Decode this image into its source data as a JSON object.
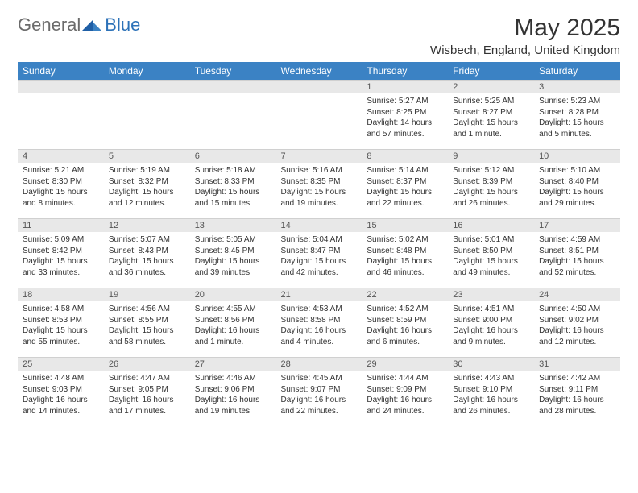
{
  "logo": {
    "general": "General",
    "blue": "Blue"
  },
  "header": {
    "month_title": "May 2025",
    "location": "Wisbech, England, United Kingdom"
  },
  "colors": {
    "header_bg": "#3b82c4",
    "header_text": "#ffffff",
    "daynum_bg": "#e8e8e8",
    "body_text": "#333333"
  },
  "weekdays": [
    "Sunday",
    "Monday",
    "Tuesday",
    "Wednesday",
    "Thursday",
    "Friday",
    "Saturday"
  ],
  "weeks": [
    [
      null,
      null,
      null,
      null,
      {
        "n": "1",
        "sunrise": "Sunrise: 5:27 AM",
        "sunset": "Sunset: 8:25 PM",
        "daylight": "Daylight: 14 hours and 57 minutes."
      },
      {
        "n": "2",
        "sunrise": "Sunrise: 5:25 AM",
        "sunset": "Sunset: 8:27 PM",
        "daylight": "Daylight: 15 hours and 1 minute."
      },
      {
        "n": "3",
        "sunrise": "Sunrise: 5:23 AM",
        "sunset": "Sunset: 8:28 PM",
        "daylight": "Daylight: 15 hours and 5 minutes."
      }
    ],
    [
      {
        "n": "4",
        "sunrise": "Sunrise: 5:21 AM",
        "sunset": "Sunset: 8:30 PM",
        "daylight": "Daylight: 15 hours and 8 minutes."
      },
      {
        "n": "5",
        "sunrise": "Sunrise: 5:19 AM",
        "sunset": "Sunset: 8:32 PM",
        "daylight": "Daylight: 15 hours and 12 minutes."
      },
      {
        "n": "6",
        "sunrise": "Sunrise: 5:18 AM",
        "sunset": "Sunset: 8:33 PM",
        "daylight": "Daylight: 15 hours and 15 minutes."
      },
      {
        "n": "7",
        "sunrise": "Sunrise: 5:16 AM",
        "sunset": "Sunset: 8:35 PM",
        "daylight": "Daylight: 15 hours and 19 minutes."
      },
      {
        "n": "8",
        "sunrise": "Sunrise: 5:14 AM",
        "sunset": "Sunset: 8:37 PM",
        "daylight": "Daylight: 15 hours and 22 minutes."
      },
      {
        "n": "9",
        "sunrise": "Sunrise: 5:12 AM",
        "sunset": "Sunset: 8:39 PM",
        "daylight": "Daylight: 15 hours and 26 minutes."
      },
      {
        "n": "10",
        "sunrise": "Sunrise: 5:10 AM",
        "sunset": "Sunset: 8:40 PM",
        "daylight": "Daylight: 15 hours and 29 minutes."
      }
    ],
    [
      {
        "n": "11",
        "sunrise": "Sunrise: 5:09 AM",
        "sunset": "Sunset: 8:42 PM",
        "daylight": "Daylight: 15 hours and 33 minutes."
      },
      {
        "n": "12",
        "sunrise": "Sunrise: 5:07 AM",
        "sunset": "Sunset: 8:43 PM",
        "daylight": "Daylight: 15 hours and 36 minutes."
      },
      {
        "n": "13",
        "sunrise": "Sunrise: 5:05 AM",
        "sunset": "Sunset: 8:45 PM",
        "daylight": "Daylight: 15 hours and 39 minutes."
      },
      {
        "n": "14",
        "sunrise": "Sunrise: 5:04 AM",
        "sunset": "Sunset: 8:47 PM",
        "daylight": "Daylight: 15 hours and 42 minutes."
      },
      {
        "n": "15",
        "sunrise": "Sunrise: 5:02 AM",
        "sunset": "Sunset: 8:48 PM",
        "daylight": "Daylight: 15 hours and 46 minutes."
      },
      {
        "n": "16",
        "sunrise": "Sunrise: 5:01 AM",
        "sunset": "Sunset: 8:50 PM",
        "daylight": "Daylight: 15 hours and 49 minutes."
      },
      {
        "n": "17",
        "sunrise": "Sunrise: 4:59 AM",
        "sunset": "Sunset: 8:51 PM",
        "daylight": "Daylight: 15 hours and 52 minutes."
      }
    ],
    [
      {
        "n": "18",
        "sunrise": "Sunrise: 4:58 AM",
        "sunset": "Sunset: 8:53 PM",
        "daylight": "Daylight: 15 hours and 55 minutes."
      },
      {
        "n": "19",
        "sunrise": "Sunrise: 4:56 AM",
        "sunset": "Sunset: 8:55 PM",
        "daylight": "Daylight: 15 hours and 58 minutes."
      },
      {
        "n": "20",
        "sunrise": "Sunrise: 4:55 AM",
        "sunset": "Sunset: 8:56 PM",
        "daylight": "Daylight: 16 hours and 1 minute."
      },
      {
        "n": "21",
        "sunrise": "Sunrise: 4:53 AM",
        "sunset": "Sunset: 8:58 PM",
        "daylight": "Daylight: 16 hours and 4 minutes."
      },
      {
        "n": "22",
        "sunrise": "Sunrise: 4:52 AM",
        "sunset": "Sunset: 8:59 PM",
        "daylight": "Daylight: 16 hours and 6 minutes."
      },
      {
        "n": "23",
        "sunrise": "Sunrise: 4:51 AM",
        "sunset": "Sunset: 9:00 PM",
        "daylight": "Daylight: 16 hours and 9 minutes."
      },
      {
        "n": "24",
        "sunrise": "Sunrise: 4:50 AM",
        "sunset": "Sunset: 9:02 PM",
        "daylight": "Daylight: 16 hours and 12 minutes."
      }
    ],
    [
      {
        "n": "25",
        "sunrise": "Sunrise: 4:48 AM",
        "sunset": "Sunset: 9:03 PM",
        "daylight": "Daylight: 16 hours and 14 minutes."
      },
      {
        "n": "26",
        "sunrise": "Sunrise: 4:47 AM",
        "sunset": "Sunset: 9:05 PM",
        "daylight": "Daylight: 16 hours and 17 minutes."
      },
      {
        "n": "27",
        "sunrise": "Sunrise: 4:46 AM",
        "sunset": "Sunset: 9:06 PM",
        "daylight": "Daylight: 16 hours and 19 minutes."
      },
      {
        "n": "28",
        "sunrise": "Sunrise: 4:45 AM",
        "sunset": "Sunset: 9:07 PM",
        "daylight": "Daylight: 16 hours and 22 minutes."
      },
      {
        "n": "29",
        "sunrise": "Sunrise: 4:44 AM",
        "sunset": "Sunset: 9:09 PM",
        "daylight": "Daylight: 16 hours and 24 minutes."
      },
      {
        "n": "30",
        "sunrise": "Sunrise: 4:43 AM",
        "sunset": "Sunset: 9:10 PM",
        "daylight": "Daylight: 16 hours and 26 minutes."
      },
      {
        "n": "31",
        "sunrise": "Sunrise: 4:42 AM",
        "sunset": "Sunset: 9:11 PM",
        "daylight": "Daylight: 16 hours and 28 minutes."
      }
    ]
  ]
}
